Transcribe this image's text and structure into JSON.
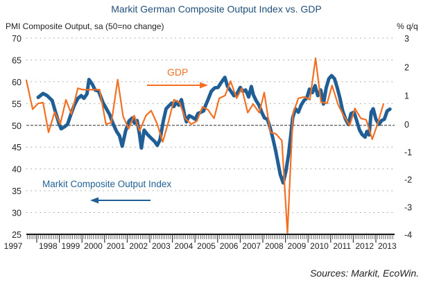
{
  "chart_data": {
    "type": "line",
    "title": "Markit German Composite Output Index vs. GDP",
    "ylabel_left": "PMI Composite Output, sa (50=no change)",
    "ylabel_right": "% q/q",
    "ylim_left": [
      25,
      70
    ],
    "ylim_right": [
      -4,
      3
    ],
    "yticks_left": [
      "70",
      "65",
      "60",
      "55",
      "50",
      "45",
      "40",
      "35",
      "30",
      "25"
    ],
    "yticks_right": [
      "3",
      "2",
      "1",
      "0",
      "-1",
      "-2",
      "-3",
      "-4"
    ],
    "xlim": [
      1997.54,
      2013.7
    ],
    "xtick_labels": [
      "1997",
      "1998",
      "1999",
      "2000",
      "2001",
      "2002",
      "2003",
      "2004",
      "2005",
      "2006",
      "2007",
      "2008",
      "2009",
      "2010",
      "2011",
      "2012",
      "2013"
    ],
    "grid": "dotted horizontal",
    "reference_line": "50 (left) / 0 (right)",
    "annotations": [
      {
        "text": "GDP",
        "arrow": "right",
        "series": "GDP"
      },
      {
        "text": "Markit Composite Output Index",
        "arrow": "left",
        "series": "Markit Composite Output Index"
      }
    ],
    "source": "Sources: Markit, EcoWin.",
    "series": [
      {
        "name": "Markit Composite Output Index",
        "axis": "left",
        "color": "#1f5f95",
        "x": [
          1998.06,
          1998.28,
          1998.46,
          1998.68,
          1998.83,
          1998.99,
          1999.08,
          1999.23,
          1999.36,
          1999.51,
          1999.66,
          1999.82,
          1999.97,
          2000.09,
          2000.22,
          2000.31,
          2000.46,
          2000.58,
          2000.74,
          2000.93,
          2001.08,
          2001.23,
          2001.38,
          2001.53,
          2001.66,
          2001.78,
          2001.93,
          2002.08,
          2002.23,
          2002.32,
          2002.44,
          2002.54,
          2002.63,
          2002.75,
          2002.9,
          2003.05,
          2003.21,
          2003.33,
          2003.45,
          2003.6,
          2003.72,
          2003.85,
          2003.97,
          2004.06,
          2004.19,
          2004.28,
          2004.4,
          2004.53,
          2004.62,
          2004.74,
          2004.86,
          2005.01,
          2005.13,
          2005.26,
          2005.38,
          2005.47,
          2005.56,
          2005.72,
          2005.87,
          2006.02,
          2006.14,
          2006.32,
          2006.44,
          2006.59,
          2006.72,
          2006.84,
          2007.0,
          2007.12,
          2007.24,
          2007.37,
          2007.49,
          2007.58,
          2007.7,
          2007.83,
          2007.95,
          2008.07,
          2008.2,
          2008.32,
          2008.44,
          2008.56,
          2008.68,
          2008.77,
          2008.9,
          2009.02,
          2009.14,
          2009.23,
          2009.32,
          2009.44,
          2009.57,
          2009.69,
          2009.82,
          2009.94,
          2010.06,
          2010.19,
          2010.31,
          2010.43,
          2010.56,
          2010.68,
          2010.8,
          2010.92,
          2011.04,
          2011.17,
          2011.29,
          2011.41,
          2011.53,
          2011.66,
          2011.78,
          2011.9,
          2012.03,
          2012.15,
          2012.27,
          2012.39,
          2012.52,
          2012.6,
          2012.7,
          2012.79,
          2012.88,
          2013.0,
          2013.13,
          2013.25,
          2013.37,
          2013.5,
          2013.62
        ],
        "values": [
          56.4,
          57.3,
          56.8,
          55.7,
          53.0,
          50.3,
          49.2,
          49.7,
          50.2,
          52.5,
          54.6,
          56.2,
          56.8,
          56.2,
          57.2,
          60.5,
          59.4,
          58.1,
          57.8,
          55.2,
          53.8,
          52.4,
          50.3,
          48.6,
          47.6,
          45.2,
          48.7,
          51.0,
          51.7,
          50.5,
          51.1,
          48.1,
          44.8,
          48.9,
          47.9,
          47.1,
          46.3,
          45.4,
          46.7,
          51.1,
          53.8,
          54.5,
          55.1,
          54.3,
          55.4,
          54.6,
          55.9,
          52.5,
          50.8,
          52.2,
          51.9,
          51.4,
          52.7,
          53.0,
          53.3,
          54.6,
          55.7,
          57.8,
          58.6,
          58.7,
          59.7,
          61.0,
          58.9,
          57.8,
          56.8,
          57.1,
          58.7,
          57.8,
          58.1,
          56.5,
          58.9,
          57.0,
          55.7,
          54.6,
          53.0,
          51.7,
          51.4,
          49.5,
          47.1,
          44.3,
          41.1,
          38.7,
          36.8,
          39.5,
          43.5,
          47.5,
          51.7,
          53.8,
          53.0,
          54.6,
          55.7,
          56.2,
          58.3,
          57.5,
          59.1,
          56.8,
          58.1,
          54.9,
          58.6,
          60.7,
          61.4,
          60.7,
          58.6,
          56.2,
          53.3,
          51.4,
          50.2,
          52.7,
          53.0,
          51.1,
          49.0,
          47.9,
          47.3,
          48.6,
          47.8,
          53.0,
          53.8,
          51.4,
          50.2,
          51.1,
          51.4,
          53.3,
          53.7
        ]
      },
      {
        "name": "GDP",
        "axis": "right",
        "color": "#f36f21",
        "x": [
          1997.54,
          1997.82,
          1998.06,
          1998.28,
          1998.52,
          1998.79,
          1999.04,
          1999.29,
          1999.53,
          1999.82,
          2000.05,
          2000.31,
          2000.55,
          2000.78,
          2001.06,
          2001.3,
          2001.58,
          2001.82,
          2002.06,
          2002.31,
          2002.55,
          2002.83,
          2003.06,
          2003.33,
          2003.57,
          2003.83,
          2004.07,
          2004.32,
          2004.56,
          2004.83,
          2005.08,
          2005.33,
          2005.57,
          2005.84,
          2006.07,
          2006.33,
          2006.57,
          2006.84,
          2007.07,
          2007.33,
          2007.57,
          2007.84,
          2008.06,
          2008.33,
          2008.57,
          2008.84,
          2009.09,
          2009.33,
          2009.57,
          2009.84,
          2010.08,
          2010.33,
          2010.57,
          2010.84,
          2011.06,
          2011.33,
          2011.57,
          2011.84,
          2012.07,
          2012.33,
          2012.57,
          2012.84,
          2013.07,
          2013.33
        ],
        "values": [
          1.53,
          0.52,
          0.72,
          0.75,
          -0.3,
          0.42,
          0.0,
          0.85,
          0.35,
          1.25,
          1.2,
          1.2,
          1.2,
          1.2,
          0.0,
          0.05,
          1.55,
          0.27,
          -0.17,
          0.3,
          -0.25,
          0.3,
          0.47,
          0.0,
          -0.65,
          0.1,
          0.85,
          0.75,
          0.2,
          0.0,
          0.1,
          0.6,
          0.5,
          0.2,
          0.9,
          1.0,
          1.5,
          0.9,
          1.25,
          0.4,
          0.7,
          0.4,
          1.1,
          -0.3,
          -0.35,
          -0.6,
          -3.95,
          0.37,
          0.9,
          0.95,
          0.85,
          2.3,
          0.77,
          0.72,
          1.35,
          0.67,
          0.3,
          -0.05,
          0.55,
          0.2,
          0.15,
          -0.55,
          0.0,
          0.7
        ]
      }
    ]
  }
}
